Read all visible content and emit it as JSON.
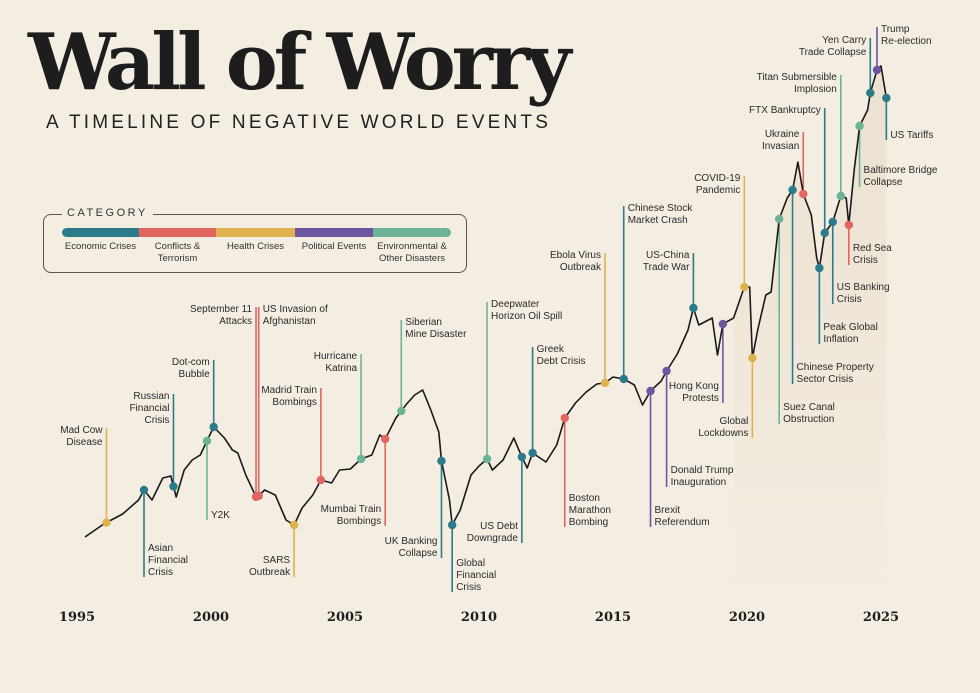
{
  "title": "Wall of Worry",
  "subtitle": "A TIMELINE OF NEGATIVE WORLD EVENTS",
  "legend": {
    "title": "CATEGORY",
    "items": [
      {
        "key": "economic",
        "label": "Economic Crises",
        "color": "#2b7b8a"
      },
      {
        "key": "conflict",
        "label": "Conflicts &\nTerrorism",
        "color": "#e0665f"
      },
      {
        "key": "health",
        "label": "Health Crises",
        "color": "#dfb24f"
      },
      {
        "key": "political",
        "label": "Political Events",
        "color": "#6e559f"
      },
      {
        "key": "environmental",
        "label": "Environmental &\nOther Disasters",
        "color": "#6db396"
      }
    ]
  },
  "chart_data": {
    "type": "line",
    "title": "Wall of Worry",
    "xlabel": "",
    "ylabel": "",
    "xlim": [
      1995,
      2026
    ],
    "x_ticks": [
      "1995",
      "2000",
      "2005",
      "2010",
      "2015",
      "2020",
      "2025"
    ],
    "y_axis_shown": false,
    "grid": false,
    "line_color": "#1a1a1a",
    "series": [
      {
        "x": [
          1995.3,
          1996,
          1996.7,
          1997.3,
          1997.5,
          1997.8,
          1998.2,
          1998.5,
          1998.7,
          1999.0,
          1999.3,
          1999.6,
          1999.9,
          2000.1,
          2000.5,
          2000.8,
          2001.0,
          2001.3,
          2001.7,
          2002.0,
          2002.4,
          2002.8,
          2003.1,
          2003.4,
          2003.8,
          2004.1,
          2004.5,
          2004.8,
          2005.2,
          2005.6,
          2006.0,
          2006.3,
          2006.5,
          2006.9,
          2007.3,
          2007.6,
          2007.9,
          2008.2,
          2008.5,
          2008.6,
          2008.9,
          2009.0,
          2009.3,
          2009.7,
          2010.0,
          2010.3,
          2010.5,
          2010.9,
          2011.3,
          2011.6,
          2011.8,
          2012.0,
          2012.5,
          2012.9,
          2013.2,
          2013.6,
          2014.0,
          2014.4,
          2014.7,
          2015.0,
          2015.4,
          2015.8,
          2016.1,
          2016.4,
          2016.8,
          2017.0,
          2017.4,
          2017.8,
          2018.0,
          2018.2,
          2018.7,
          2018.9,
          2019.1,
          2019.5,
          2019.9,
          2020.1,
          2020.2,
          2020.4,
          2020.7,
          2020.9,
          2021.2,
          2021.5,
          2021.7,
          2021.9,
          2022.1,
          2022.4,
          2022.6,
          2022.7,
          2022.9,
          2023.2,
          2023.5,
          2023.7,
          2023.8,
          2024.0,
          2024.2,
          2024.5,
          2024.6,
          2024.85,
          2025.0,
          2025.2
        ],
        "y": [
          4.6,
          7.2,
          9.2,
          12,
          14,
          12,
          16.4,
          16.8,
          12.6,
          18,
          20,
          21,
          24.4,
          26.6,
          24.4,
          22,
          21.4,
          17,
          12.4,
          14,
          13,
          8,
          7,
          10.4,
          13,
          16,
          15.4,
          18,
          18.2,
          20.2,
          21,
          25,
          24.2,
          28.4,
          31.2,
          33,
          34,
          30,
          25.6,
          19.8,
          12,
          7,
          10,
          17,
          18.8,
          20.2,
          18,
          20,
          24.4,
          20.6,
          18.4,
          21.4,
          19.6,
          23,
          28.4,
          31.4,
          33.6,
          35.2,
          35.4,
          36.6,
          36.2,
          35,
          31,
          33.8,
          35.8,
          37.8,
          41.2,
          46,
          50.4,
          47,
          48.4,
          41,
          47.2,
          48.4,
          54.6,
          54.6,
          40.4,
          46,
          53,
          53.6,
          68.2,
          72.4,
          74,
          79.6,
          73.2,
          69,
          60.4,
          58.4,
          65.4,
          67.6,
          72.8,
          72.4,
          67,
          78,
          86.8,
          90,
          93.4,
          98,
          98.8,
          92.4
        ]
      }
    ],
    "events": [
      {
        "label": "Mad Cow\nDisease",
        "year": 1996.1,
        "category": "health"
      },
      {
        "label": "Asian\nFinancial\nCrisis",
        "year": 1997.5,
        "category": "economic"
      },
      {
        "label": "Russian\nFinancial\nCrisis",
        "year": 1998.6,
        "category": "economic"
      },
      {
        "label": "Y2K",
        "year": 1999.85,
        "category": "environmental"
      },
      {
        "label": "Dot-com\nBubble",
        "year": 2000.1,
        "category": "economic"
      },
      {
        "label": "September 11\nAttacks",
        "year": 2001.68,
        "category": "conflict"
      },
      {
        "label": "US Invasion of\nAfghanistan",
        "year": 2001.78,
        "category": "conflict"
      },
      {
        "label": "SARS\nOutbreak",
        "year": 2003.1,
        "category": "health"
      },
      {
        "label": "Madrid Train\nBombings",
        "year": 2004.1,
        "category": "conflict"
      },
      {
        "label": "Hurricane\nKatrina",
        "year": 2005.6,
        "category": "environmental"
      },
      {
        "label": "Mumbai Train\nBombings",
        "year": 2006.5,
        "category": "conflict"
      },
      {
        "label": "Siberian\nMine Disaster",
        "year": 2007.1,
        "category": "environmental"
      },
      {
        "label": "UK Banking\nCollapse",
        "year": 2008.6,
        "category": "economic"
      },
      {
        "label": "Global\nFinancial\nCrisis",
        "year": 2009.0,
        "category": "economic"
      },
      {
        "label": "Deepwater\nHorizon Oil Spill",
        "year": 2010.3,
        "category": "environmental"
      },
      {
        "label": "US Debt\nDowngrade",
        "year": 2011.6,
        "category": "economic"
      },
      {
        "label": "Greek\nDebt Crisis",
        "year": 2012.0,
        "category": "economic"
      },
      {
        "label": "Boston\nMarathon\nBombing",
        "year": 2013.2,
        "category": "conflict"
      },
      {
        "label": "Ebola Virus\nOutbreak",
        "year": 2014.7,
        "category": "health"
      },
      {
        "label": "Chinese Stock\nMarket Crash",
        "year": 2015.4,
        "category": "economic"
      },
      {
        "label": "Brexit\nReferendum",
        "year": 2016.4,
        "category": "political"
      },
      {
        "label": "Donald Trump\nInauguration",
        "year": 2017.0,
        "category": "political"
      },
      {
        "label": "US-China\nTrade War",
        "year": 2018.0,
        "category": "economic"
      },
      {
        "label": "Hong Kong\nProtests",
        "year": 2019.1,
        "category": "political"
      },
      {
        "label": "COVID-19\nPandemic",
        "year": 2019.9,
        "category": "health"
      },
      {
        "label": "Global\nLockdowns",
        "year": 2020.2,
        "category": "health"
      },
      {
        "label": "Suez Canal\nObstruction",
        "year": 2021.2,
        "category": "environmental"
      },
      {
        "label": "Chinese Property\nSector Crisis",
        "year": 2021.7,
        "category": "economic"
      },
      {
        "label": "Ukraine\nInvasian",
        "year": 2022.1,
        "category": "conflict"
      },
      {
        "label": "Peak Global\nInflation",
        "year": 2022.7,
        "category": "economic"
      },
      {
        "label": "FTX Bankruptcy",
        "year": 2022.9,
        "category": "economic"
      },
      {
        "label": "US Banking\nCrisis",
        "year": 2023.2,
        "category": "economic"
      },
      {
        "label": "Titan Submersible\nImplosion",
        "year": 2023.5,
        "category": "environmental"
      },
      {
        "label": "Red Sea\nCrisis",
        "year": 2023.8,
        "category": "conflict"
      },
      {
        "label": "Baltimore Bridge\nCollapse",
        "year": 2024.2,
        "category": "environmental"
      },
      {
        "label": "Yen Carry\nTrade Collapse",
        "year": 2024.6,
        "category": "economic"
      },
      {
        "label": "Trump\nRe-election",
        "year": 2024.85,
        "category": "political"
      },
      {
        "label": "US Tariffs",
        "year": 2025.2,
        "category": "economic"
      }
    ]
  }
}
